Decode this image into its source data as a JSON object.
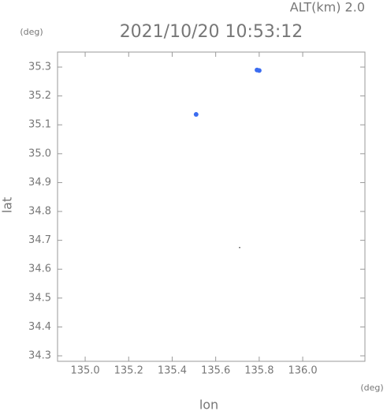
{
  "chart_data": {
    "type": "scatter",
    "title": "2021/10/20 10:53:12",
    "subtitle": "ALT(km)  2.0",
    "x_label": "lon",
    "y_label": "lat",
    "x_unit": "(deg)",
    "y_unit": "(deg)",
    "series": [
      {
        "color": "#3b6cf0",
        "x": [
          135.79,
          135.8,
          135.51
        ],
        "y": [
          35.29,
          35.288,
          35.136
        ]
      },
      {
        "color": "#333333",
        "x": [
          135.71
        ],
        "y": [
          34.675
        ]
      }
    ],
    "xlim": [
      134.873,
      136.286
    ],
    "ylim": [
      34.281,
      35.352
    ],
    "xticks": [
      {
        "value": 135.0,
        "label": "135.0"
      },
      {
        "value": 135.2,
        "label": "135.2"
      },
      {
        "value": 135.4,
        "label": "135.4"
      },
      {
        "value": 135.6,
        "label": "135.6"
      },
      {
        "value": 135.8,
        "label": "135.8"
      },
      {
        "value": 136.0,
        "label": "136.0"
      }
    ],
    "yticks": [
      {
        "value": 34.3,
        "label": "34.3"
      },
      {
        "value": 34.4,
        "label": "34.4"
      },
      {
        "value": 34.5,
        "label": "34.5"
      },
      {
        "value": 34.6,
        "label": "34.6"
      },
      {
        "value": 34.7,
        "label": "34.7"
      },
      {
        "value": 34.8,
        "label": "34.8"
      },
      {
        "value": 34.9,
        "label": "34.9"
      },
      {
        "value": 35.0,
        "label": "35.0"
      },
      {
        "value": 35.1,
        "label": "35.1"
      },
      {
        "value": 35.2,
        "label": "35.2"
      },
      {
        "value": 35.3,
        "label": "35.3"
      }
    ]
  }
}
